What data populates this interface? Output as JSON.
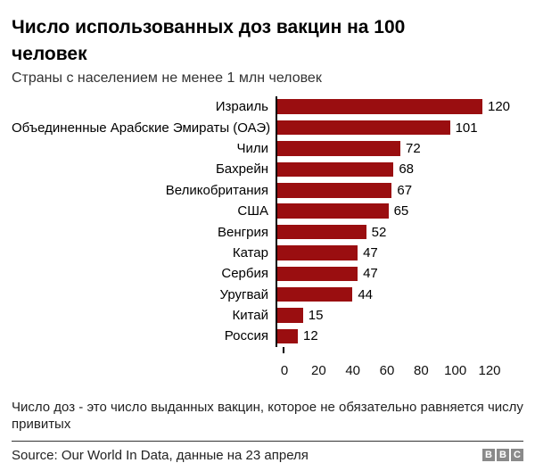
{
  "header": {
    "title": "Число использованных доз вакцин на 100 человек",
    "subtitle": "Страны с населением не менее 1 млн человек"
  },
  "chart_data": {
    "type": "bar",
    "orientation": "horizontal",
    "categories": [
      "Израиль",
      "Объединенные Арабские Эмираты (ОАЭ)",
      "Чили",
      "Бахрейн",
      "Великобритания",
      "США",
      "Венгрия",
      "Катар",
      "Сербия",
      "Уругвай",
      "Китай",
      "Россия"
    ],
    "values": [
      120,
      101,
      72,
      68,
      67,
      65,
      52,
      47,
      47,
      44,
      15,
      12
    ],
    "xlim": [
      0,
      120
    ],
    "x_ticks": [
      0,
      20,
      40,
      60,
      80,
      100,
      120
    ],
    "bar_color": "#9a0e10",
    "axis_color": "#000000",
    "grid": false,
    "legend": false,
    "value_labels": true
  },
  "footer": {
    "note": "Число доз - это число выданных вакцин, которое не обязательно равняется числу привитых",
    "source": "Source: Our World In Data, данные на 23 апреля",
    "logo_letters": [
      "B",
      "B",
      "C"
    ]
  }
}
